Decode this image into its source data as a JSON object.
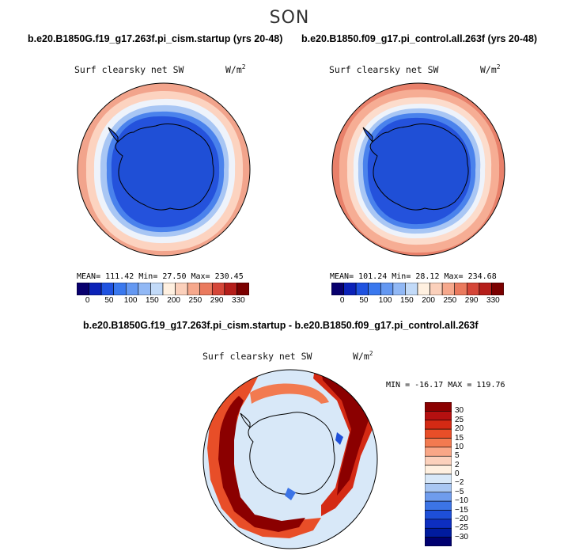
{
  "figure": {
    "season": "SON"
  },
  "panels": {
    "left": {
      "case_title": "b.e20.B1850G.f19_g17.263f.pi_cism.startup (yrs 20-48)",
      "variable": "Surf clearsky net SW",
      "units": "W/m",
      "units_exp": "2",
      "stats": "MEAN= 111.42 Min= 27.50 Max= 230.45"
    },
    "right": {
      "case_title": "b.e20.B1850.f09_g17.pi_control.all.263f (yrs 20-48)",
      "variable": "Surf clearsky net SW",
      "units": "W/m",
      "units_exp": "2",
      "stats": "MEAN= 101.24 Min= 28.12 Max= 234.68"
    },
    "diff": {
      "case_title": "b.e20.B1850G.f19_g17.263f.pi_cism.startup - b.e20.B1850.f09_g17.pi_control.all.263f",
      "variable": "Surf clearsky net SW",
      "units": "W/m",
      "units_exp": "2",
      "stats": "MIN = -16.17 MAX = 119.76"
    }
  },
  "chart_data": [
    {
      "type": "heatmap",
      "map_projection": "south-polar-stereographic",
      "title": "b.e20.B1850G.f19_g17.263f.pi_cism.startup (yrs 20-48)",
      "variable": "Surf clearsky net SW",
      "units": "W/m2",
      "mean": 111.42,
      "min": 27.5,
      "max": 230.45,
      "colorbar_ticks": [
        0,
        50,
        100,
        150,
        200,
        250,
        290,
        330
      ],
      "colorbar_position": "bottom"
    },
    {
      "type": "heatmap",
      "map_projection": "south-polar-stereographic",
      "title": "b.e20.B1850.f09_g17.pi_control.all.263f (yrs 20-48)",
      "variable": "Surf clearsky net SW",
      "units": "W/m2",
      "mean": 101.24,
      "min": 28.12,
      "max": 234.68,
      "colorbar_ticks": [
        0,
        50,
        100,
        150,
        200,
        250,
        290,
        330
      ],
      "colorbar_position": "bottom"
    },
    {
      "type": "heatmap",
      "map_projection": "south-polar-stereographic",
      "title": "b.e20.B1850G.f19_g17.263f.pi_cism.startup - b.e20.B1850.f09_g17.pi_control.all.263f",
      "variable": "Surf clearsky net SW",
      "units": "W/m2",
      "min": -16.17,
      "max": 119.76,
      "colorbar_ticks": [
        30,
        25,
        20,
        15,
        10,
        5,
        2,
        0,
        -2,
        -5,
        -10,
        -15,
        -20,
        -25,
        -30
      ],
      "colorbar_position": "right"
    }
  ],
  "colorbar_levels": {
    "abs_colors": [
      "#08006e",
      "#0b22b8",
      "#1f52e0",
      "#3a78ee",
      "#6498f2",
      "#91b8f5",
      "#c2daf8",
      "#fff0e0",
      "#fbd0bb",
      "#f6a88c",
      "#ea7a5e",
      "#d54638",
      "#b51e1a",
      "#7b0000"
    ],
    "abs_labels": [
      "0",
      "50",
      "100",
      "150",
      "200",
      "250",
      "290",
      "330"
    ],
    "diff_colors": [
      "#8b0000",
      "#b51010",
      "#d42a14",
      "#e84e28",
      "#f27a50",
      "#f9a787",
      "#fcd1bc",
      "#fff0e0",
      "#d8e8f8",
      "#a9c7f3",
      "#6f9ced",
      "#3c74e6",
      "#1e4fd8",
      "#0d2ec0",
      "#001b9e",
      "#000070"
    ],
    "diff_labels": [
      "30",
      "25",
      "20",
      "15",
      "10",
      "5",
      "2",
      "0",
      "−2",
      "−5",
      "−10",
      "−15",
      "−20",
      "−25",
      "−30"
    ]
  }
}
